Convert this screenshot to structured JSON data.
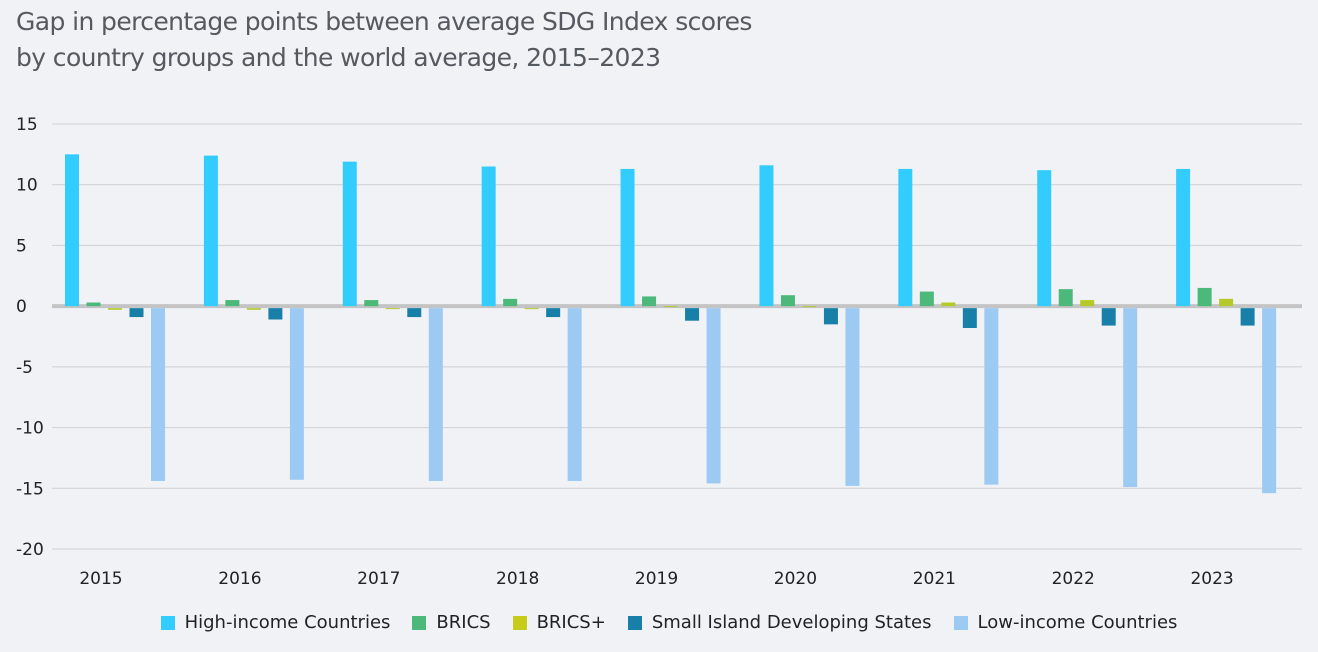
{
  "chart_data": {
    "type": "bar",
    "title": "Gap in percentage points between average SDG Index scores\nby country groups and the world average, 2015–2023",
    "xlabel": "",
    "ylabel": "",
    "ylim": [
      -20,
      15
    ],
    "yticks": [
      15,
      10,
      5,
      0,
      -5,
      -10,
      -15,
      -20
    ],
    "grid": true,
    "legend_position": "bottom",
    "categories": [
      "2015",
      "2016",
      "2017",
      "2018",
      "2019",
      "2020",
      "2021",
      "2022",
      "2023"
    ],
    "series": [
      {
        "name": "High-income Countries",
        "color": "#33ccff",
        "values": [
          12.5,
          12.4,
          11.9,
          11.5,
          11.3,
          11.6,
          11.3,
          11.2,
          11.3
        ]
      },
      {
        "name": "BRICS",
        "color": "#4cb87a",
        "values": [
          0.3,
          0.5,
          0.5,
          0.6,
          0.8,
          0.9,
          1.2,
          1.4,
          1.5
        ]
      },
      {
        "name": "BRICS+",
        "color": "#b5c92a",
        "values": [
          -0.3,
          -0.3,
          -0.1,
          -0.1,
          0.0,
          0.0,
          0.3,
          0.5,
          0.6
        ]
      },
      {
        "name": "Small Island Developing States",
        "color": "#177fa8",
        "values": [
          -0.9,
          -1.1,
          -0.9,
          -0.9,
          -1.2,
          -1.5,
          -1.8,
          -1.6,
          -1.6
        ]
      },
      {
        "name": "Low-income Countries",
        "color": "#9ccaf2",
        "values": [
          -14.4,
          -14.3,
          -14.4,
          -14.4,
          -14.6,
          -14.8,
          -14.7,
          -14.9,
          -15.4
        ]
      }
    ]
  }
}
